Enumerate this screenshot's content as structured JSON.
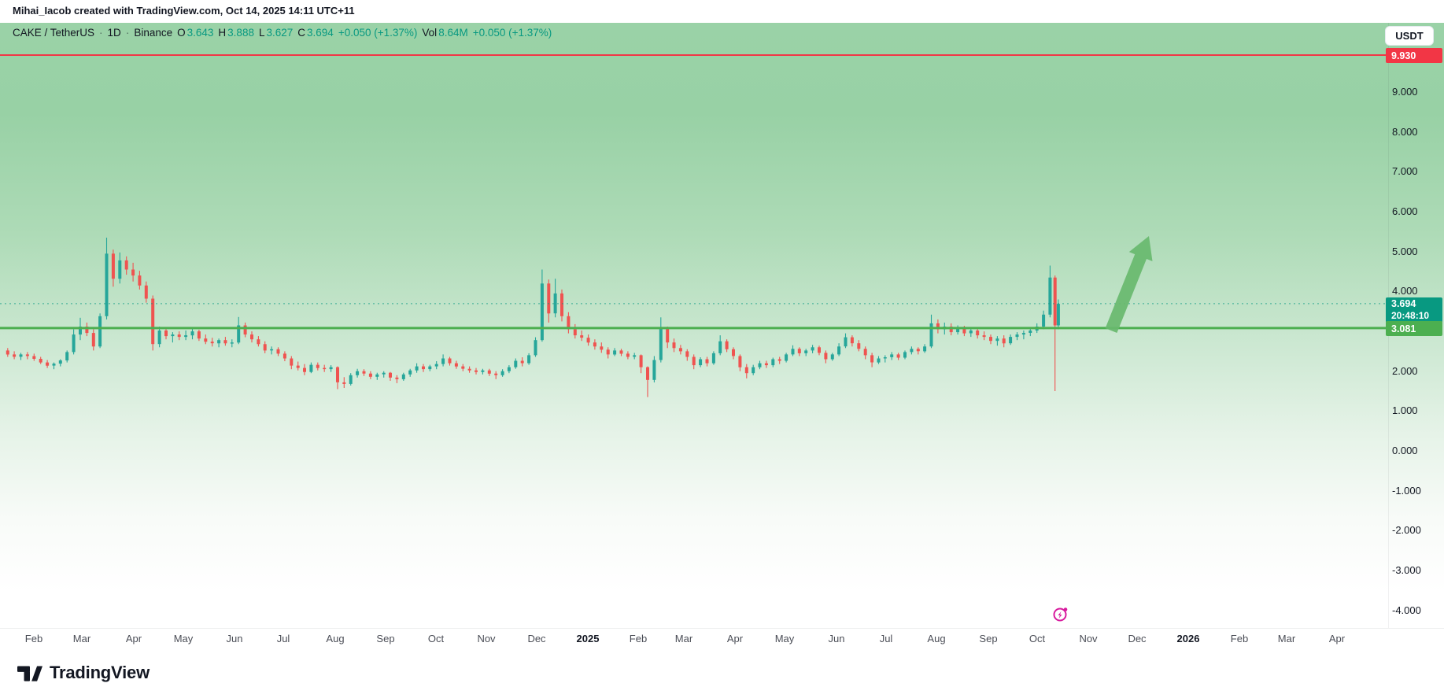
{
  "header": {
    "attribution": "Mihai_Iacob created with TradingView.com, Oct 14, 2025 14:11 UTC+11"
  },
  "legend": {
    "symbol": "CAKE / TetherUS",
    "separator": "·",
    "interval": "1D",
    "exchange": "Binance",
    "o_label": "O",
    "o_value": "3.643",
    "h_label": "H",
    "h_value": "3.888",
    "l_label": "L",
    "l_value": "3.627",
    "c_label": "C",
    "c_value": "3.694",
    "change": "+0.050 (+1.37%)",
    "vol_label": "Vol",
    "vol_value": "8.64M",
    "vol_change": "+0.050 (+1.37%)"
  },
  "currency_button": {
    "label": "USDT"
  },
  "price_axis": {
    "ticks": [
      "9.000",
      "8.000",
      "7.000",
      "6.000",
      "5.000",
      "4.000",
      "2.000",
      "1.000",
      "0.000",
      "-1.000",
      "-2.000",
      "-3.000",
      "-4.000"
    ],
    "resistance_label": "9.930",
    "support_label": "3.081",
    "last_price_label": "3.694",
    "countdown": "20:48:10"
  },
  "time_axis": {
    "labels": [
      {
        "text": "Feb"
      },
      {
        "text": "Mar"
      },
      {
        "text": "Apr"
      },
      {
        "text": "May"
      },
      {
        "text": "Jun"
      },
      {
        "text": "Jul"
      },
      {
        "text": "Aug"
      },
      {
        "text": "Sep"
      },
      {
        "text": "Oct"
      },
      {
        "text": "Nov"
      },
      {
        "text": "Dec"
      },
      {
        "text": "2025",
        "bold": true
      },
      {
        "text": "Feb"
      },
      {
        "text": "Mar"
      },
      {
        "text": "Apr"
      },
      {
        "text": "May"
      },
      {
        "text": "Jun"
      },
      {
        "text": "Jul"
      },
      {
        "text": "Aug"
      },
      {
        "text": "Sep"
      },
      {
        "text": "Oct"
      },
      {
        "text": "Nov"
      },
      {
        "text": "Dec"
      },
      {
        "text": "2026",
        "bold": true
      },
      {
        "text": "Feb"
      },
      {
        "text": "Mar"
      },
      {
        "text": "Apr"
      }
    ]
  },
  "branding": {
    "wordmark": "TradingView"
  },
  "colors": {
    "candle_up": "#26a69a",
    "candle_down": "#ef5350",
    "line_red": "#f23645",
    "line_green": "#4caf50",
    "last_price": "#089981",
    "arrow": "#68b96e",
    "event": "#d81b9e",
    "text": "#131722"
  },
  "chart_data": {
    "type": "candlestick",
    "title": "CAKE / TetherUS · 1D · Binance",
    "x_axis_labels": [
      "Feb",
      "Mar",
      "Apr",
      "May",
      "Jun",
      "Jul",
      "Aug",
      "Sep",
      "Oct",
      "Nov",
      "Dec",
      "2025",
      "Feb",
      "Mar",
      "Apr",
      "May",
      "Jun",
      "Jul",
      "Aug",
      "Sep",
      "Oct",
      "Nov",
      "Dec",
      "2026",
      "Feb",
      "Mar",
      "Apr"
    ],
    "y_axis": {
      "ticks": [
        9,
        8,
        7,
        6,
        5,
        4,
        2,
        1,
        0,
        -1,
        -2,
        -3,
        -4
      ],
      "range_visible": [
        -4.4,
        10.3
      ]
    },
    "last_price": 3.694,
    "countdown": "20:48:10",
    "price_change": "+0.050 (+1.37%)",
    "volume": "8.64M",
    "ohlc_today": {
      "open": 3.643,
      "high": 3.888,
      "low": 3.627,
      "close": 3.694
    },
    "levels": [
      {
        "role": "resistance",
        "price": 9.93,
        "color": "#f23645",
        "width": 2
      },
      {
        "role": "support",
        "price": 3.081,
        "color": "#4caf50",
        "width": 3
      }
    ],
    "annotations": [
      {
        "type": "up-arrow-drawing",
        "area": "Nov–Dec 2025 (projection zone)",
        "price_span": [
          3.1,
          5.4
        ],
        "color": "#68b96e"
      },
      {
        "type": "event-marker",
        "time": "mid-Oct 2025",
        "color": "#d81b9e"
      }
    ],
    "candles_format": [
      "day_index_from_2024-02-01",
      "open",
      "high",
      "low",
      "close"
    ],
    "candles": [
      [
        -16,
        2.52,
        2.58,
        2.36,
        2.42
      ],
      [
        -12,
        2.42,
        2.5,
        2.3,
        2.36
      ],
      [
        -8,
        2.36,
        2.46,
        2.28,
        2.42
      ],
      [
        -4,
        2.42,
        2.48,
        2.3,
        2.38
      ],
      [
        0,
        2.38,
        2.44,
        2.26,
        2.31
      ],
      [
        4,
        2.31,
        2.36,
        2.18,
        2.22
      ],
      [
        8,
        2.22,
        2.28,
        2.08,
        2.14
      ],
      [
        12,
        2.14,
        2.22,
        2.05,
        2.19
      ],
      [
        16,
        2.19,
        2.3,
        2.12,
        2.27
      ],
      [
        20,
        2.27,
        2.52,
        2.22,
        2.48
      ],
      [
        24,
        2.48,
        3.05,
        2.42,
        2.92
      ],
      [
        28,
        2.92,
        3.34,
        2.78,
        3.12
      ],
      [
        32,
        3.12,
        3.22,
        2.88,
        2.96
      ],
      [
        36,
        2.96,
        3.05,
        2.52,
        2.62
      ],
      [
        40,
        2.62,
        3.45,
        2.58,
        3.38
      ],
      [
        44,
        3.38,
        5.35,
        3.3,
        4.95
      ],
      [
        48,
        4.95,
        5.05,
        4.12,
        4.32
      ],
      [
        52,
        4.32,
        4.98,
        4.2,
        4.78
      ],
      [
        56,
        4.78,
        4.88,
        4.42,
        4.55
      ],
      [
        60,
        4.55,
        4.72,
        4.25,
        4.4
      ],
      [
        64,
        4.4,
        4.52,
        4.05,
        4.15
      ],
      [
        68,
        4.15,
        4.25,
        3.72,
        3.82
      ],
      [
        72,
        3.82,
        3.9,
        2.52,
        2.68
      ],
      [
        76,
        2.68,
        3.12,
        2.6,
        3.02
      ],
      [
        80,
        3.02,
        3.1,
        2.8,
        2.88
      ],
      [
        84,
        2.88,
        2.98,
        2.72,
        2.92
      ],
      [
        88,
        2.92,
        3.0,
        2.78,
        2.86
      ],
      [
        92,
        2.86,
        3.02,
        2.78,
        2.9
      ],
      [
        96,
        2.9,
        3.08,
        2.8,
        3.0
      ],
      [
        100,
        3.0,
        3.04,
        2.76,
        2.82
      ],
      [
        104,
        2.82,
        2.92,
        2.68,
        2.74
      ],
      [
        108,
        2.74,
        2.84,
        2.62,
        2.7
      ],
      [
        112,
        2.7,
        2.82,
        2.6,
        2.78
      ],
      [
        116,
        2.78,
        2.86,
        2.64,
        2.7
      ],
      [
        120,
        2.7,
        2.8,
        2.6,
        2.72
      ],
      [
        124,
        2.72,
        3.36,
        2.68,
        3.15
      ],
      [
        128,
        3.15,
        3.22,
        2.85,
        2.92
      ],
      [
        132,
        2.92,
        3.0,
        2.72,
        2.8
      ],
      [
        136,
        2.8,
        2.88,
        2.62,
        2.68
      ],
      [
        140,
        2.68,
        2.75,
        2.45,
        2.52
      ],
      [
        144,
        2.52,
        2.62,
        2.42,
        2.55
      ],
      [
        148,
        2.55,
        2.6,
        2.38,
        2.44
      ],
      [
        152,
        2.44,
        2.5,
        2.25,
        2.32
      ],
      [
        156,
        2.32,
        2.38,
        2.05,
        2.14
      ],
      [
        160,
        2.14,
        2.24,
        2.02,
        2.08
      ],
      [
        164,
        2.08,
        2.18,
        1.9,
        1.98
      ],
      [
        168,
        1.98,
        2.22,
        1.95,
        2.16
      ],
      [
        172,
        2.16,
        2.22,
        2.02,
        2.08
      ],
      [
        176,
        2.08,
        2.16,
        1.98,
        2.05
      ],
      [
        180,
        2.05,
        2.15,
        1.98,
        2.1
      ],
      [
        184,
        2.1,
        2.12,
        1.55,
        1.72
      ],
      [
        188,
        1.72,
        1.85,
        1.58,
        1.68
      ],
      [
        192,
        1.68,
        1.95,
        1.64,
        1.9
      ],
      [
        196,
        1.9,
        2.06,
        1.84,
        2.0
      ],
      [
        200,
        2.0,
        2.05,
        1.88,
        1.94
      ],
      [
        204,
        1.94,
        2.0,
        1.8,
        1.86
      ],
      [
        208,
        1.86,
        1.96,
        1.78,
        1.92
      ],
      [
        212,
        1.92,
        2.0,
        1.84,
        1.96
      ],
      [
        216,
        1.96,
        1.98,
        1.76,
        1.84
      ],
      [
        220,
        1.84,
        1.9,
        1.7,
        1.8
      ],
      [
        224,
        1.8,
        1.96,
        1.76,
        1.92
      ],
      [
        228,
        1.92,
        2.06,
        1.86,
        2.02
      ],
      [
        232,
        2.02,
        2.2,
        1.96,
        2.12
      ],
      [
        236,
        2.12,
        2.18,
        1.98,
        2.05
      ],
      [
        240,
        2.05,
        2.16,
        2.0,
        2.12
      ],
      [
        244,
        2.12,
        2.25,
        2.05,
        2.18
      ],
      [
        248,
        2.18,
        2.42,
        2.12,
        2.32
      ],
      [
        252,
        2.32,
        2.36,
        2.14,
        2.2
      ],
      [
        256,
        2.2,
        2.26,
        2.06,
        2.12
      ],
      [
        260,
        2.12,
        2.18,
        2.0,
        2.06
      ],
      [
        264,
        2.06,
        2.12,
        1.96,
        2.02
      ],
      [
        268,
        2.02,
        2.08,
        1.92,
        1.98
      ],
      [
        272,
        1.98,
        2.06,
        1.92,
        2.02
      ],
      [
        276,
        2.02,
        2.06,
        1.88,
        1.94
      ],
      [
        280,
        1.94,
        2.0,
        1.8,
        1.9
      ],
      [
        284,
        1.9,
        2.05,
        1.86,
        2.0
      ],
      [
        288,
        2.0,
        2.15,
        1.95,
        2.1
      ],
      [
        292,
        2.1,
        2.32,
        2.06,
        2.26
      ],
      [
        296,
        2.26,
        2.35,
        2.12,
        2.2
      ],
      [
        300,
        2.2,
        2.45,
        2.16,
        2.4
      ],
      [
        304,
        2.4,
        2.85,
        2.36,
        2.78
      ],
      [
        308,
        2.78,
        4.55,
        2.74,
        4.2
      ],
      [
        312,
        4.2,
        4.3,
        3.22,
        3.45
      ],
      [
        316,
        3.45,
        4.32,
        3.35,
        3.95
      ],
      [
        320,
        3.95,
        4.05,
        3.25,
        3.38
      ],
      [
        324,
        3.38,
        3.48,
        2.95,
        3.05
      ],
      [
        328,
        3.05,
        3.18,
        2.82,
        2.9
      ],
      [
        332,
        2.9,
        3.02,
        2.76,
        2.84
      ],
      [
        336,
        2.84,
        2.92,
        2.64,
        2.72
      ],
      [
        340,
        2.72,
        2.8,
        2.54,
        2.62
      ],
      [
        344,
        2.62,
        2.72,
        2.46,
        2.54
      ],
      [
        348,
        2.54,
        2.6,
        2.32,
        2.42
      ],
      [
        352,
        2.42,
        2.58,
        2.38,
        2.52
      ],
      [
        356,
        2.52,
        2.56,
        2.38,
        2.44
      ],
      [
        360,
        2.44,
        2.5,
        2.3,
        2.36
      ],
      [
        364,
        2.36,
        2.46,
        2.3,
        2.4
      ],
      [
        368,
        2.4,
        2.42,
        1.95,
        2.1
      ],
      [
        372,
        2.1,
        2.12,
        1.35,
        1.78
      ],
      [
        376,
        1.78,
        2.38,
        1.72,
        2.28
      ],
      [
        380,
        2.28,
        3.35,
        2.22,
        3.08
      ],
      [
        384,
        3.08,
        3.12,
        2.58,
        2.72
      ],
      [
        388,
        2.72,
        2.82,
        2.48,
        2.58
      ],
      [
        392,
        2.58,
        2.66,
        2.42,
        2.5
      ],
      [
        396,
        2.5,
        2.55,
        2.26,
        2.36
      ],
      [
        400,
        2.36,
        2.42,
        2.05,
        2.15
      ],
      [
        404,
        2.15,
        2.35,
        2.1,
        2.3
      ],
      [
        408,
        2.3,
        2.36,
        2.12,
        2.2
      ],
      [
        412,
        2.2,
        2.5,
        2.16,
        2.45
      ],
      [
        416,
        2.45,
        2.9,
        2.4,
        2.75
      ],
      [
        420,
        2.75,
        2.8,
        2.48,
        2.55
      ],
      [
        424,
        2.55,
        2.6,
        2.3,
        2.38
      ],
      [
        428,
        2.38,
        2.42,
        2.0,
        2.1
      ],
      [
        432,
        2.1,
        2.18,
        1.82,
        1.95
      ],
      [
        436,
        1.95,
        2.16,
        1.9,
        2.1
      ],
      [
        440,
        2.1,
        2.26,
        2.05,
        2.2
      ],
      [
        444,
        2.2,
        2.26,
        2.08,
        2.15
      ],
      [
        448,
        2.15,
        2.34,
        2.1,
        2.3
      ],
      [
        452,
        2.3,
        2.36,
        2.18,
        2.26
      ],
      [
        456,
        2.26,
        2.46,
        2.22,
        2.42
      ],
      [
        460,
        2.42,
        2.65,
        2.38,
        2.56
      ],
      [
        464,
        2.56,
        2.6,
        2.38,
        2.45
      ],
      [
        468,
        2.45,
        2.56,
        2.38,
        2.52
      ],
      [
        472,
        2.52,
        2.66,
        2.45,
        2.6
      ],
      [
        476,
        2.6,
        2.64,
        2.4,
        2.46
      ],
      [
        480,
        2.46,
        2.52,
        2.2,
        2.3
      ],
      [
        484,
        2.3,
        2.46,
        2.26,
        2.42
      ],
      [
        488,
        2.42,
        2.7,
        2.38,
        2.62
      ],
      [
        492,
        2.62,
        2.95,
        2.58,
        2.85
      ],
      [
        496,
        2.85,
        2.9,
        2.62,
        2.7
      ],
      [
        500,
        2.7,
        2.78,
        2.5,
        2.56
      ],
      [
        504,
        2.56,
        2.62,
        2.3,
        2.4
      ],
      [
        508,
        2.4,
        2.46,
        2.1,
        2.22
      ],
      [
        512,
        2.22,
        2.38,
        2.18,
        2.32
      ],
      [
        516,
        2.32,
        2.4,
        2.22,
        2.35
      ],
      [
        520,
        2.35,
        2.48,
        2.28,
        2.42
      ],
      [
        524,
        2.42,
        2.46,
        2.28,
        2.34
      ],
      [
        528,
        2.34,
        2.52,
        2.3,
        2.48
      ],
      [
        532,
        2.48,
        2.62,
        2.42,
        2.56
      ],
      [
        536,
        2.56,
        2.6,
        2.42,
        2.5
      ],
      [
        540,
        2.5,
        2.68,
        2.46,
        2.62
      ],
      [
        544,
        2.62,
        3.42,
        2.58,
        3.2
      ],
      [
        548,
        3.2,
        3.3,
        2.95,
        3.05
      ],
      [
        552,
        3.05,
        3.22,
        2.92,
        3.12
      ],
      [
        556,
        3.12,
        3.2,
        2.9,
        2.98
      ],
      [
        560,
        2.98,
        3.15,
        2.92,
        3.08
      ],
      [
        564,
        3.08,
        3.14,
        2.88,
        2.95
      ],
      [
        568,
        2.95,
        3.1,
        2.86,
        3.02
      ],
      [
        572,
        3.02,
        3.08,
        2.82,
        2.9
      ],
      [
        576,
        2.9,
        3.0,
        2.78,
        2.86
      ],
      [
        580,
        2.86,
        2.92,
        2.68,
        2.76
      ],
      [
        584,
        2.76,
        2.88,
        2.64,
        2.82
      ],
      [
        588,
        2.82,
        2.9,
        2.6,
        2.7
      ],
      [
        592,
        2.7,
        2.92,
        2.66,
        2.86
      ],
      [
        596,
        2.86,
        2.98,
        2.78,
        2.92
      ],
      [
        600,
        2.92,
        3.02,
        2.8,
        2.96
      ],
      [
        604,
        2.96,
        3.08,
        2.88,
        3.02
      ],
      [
        608,
        3.02,
        3.2,
        2.96,
        3.12
      ],
      [
        612,
        3.12,
        3.52,
        3.05,
        3.42
      ],
      [
        616,
        3.42,
        4.65,
        3.35,
        4.35
      ],
      [
        619,
        4.35,
        4.4,
        1.5,
        3.15
      ],
      [
        621,
        3.15,
        3.8,
        3.05,
        3.69
      ]
    ]
  }
}
